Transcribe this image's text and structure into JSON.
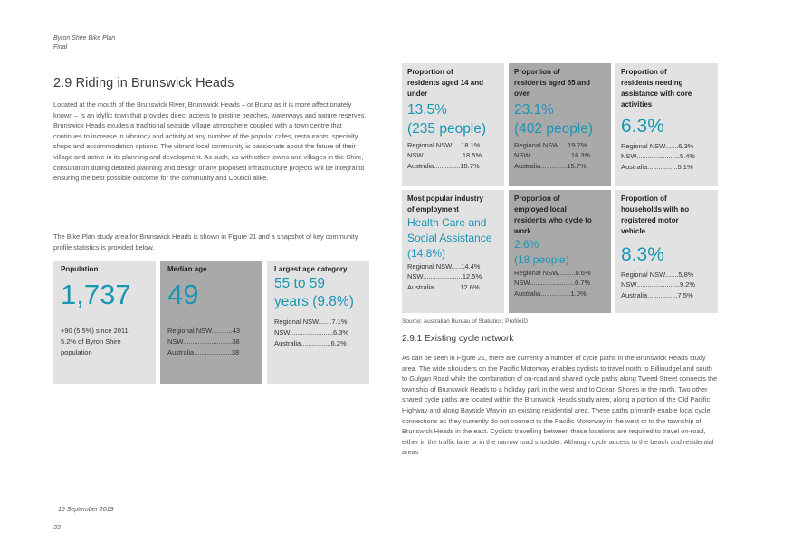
{
  "header": {
    "line1": "Byron Shire Bike Plan",
    "line2": "Final"
  },
  "heading": "2.9  Riding in Brunswick Heads",
  "intro_paragraph": "Located at the mouth of the Brunswick River, Brunswick Heads – or Brunz as it is more affectionately known – is an idyllic town that provides direct access to pristine beaches, waterways and nature reserves. Brunswick Heads exudes a traditional seaside village atmosphere coupled with a town centre that continues to increase in vibrancy and activity at any number of the popular cafes, restaurants, specialty shops and accommodation options. The vibrant local community is passionate about the future of their village and active in its planning and development. As such, as with other towns and villages in the Shire, consultation during detailed planning and design of any proposed infrastructure projects will be integral to ensuring the best possible outcome for the community and Council alike.",
  "study_paragraph": "The Bike Plan study area for Brunswick Heads is shown in Figure 21 and a snapshot of key community profile statistics is provided below.",
  "left_stats": [
    {
      "title": "Population",
      "big": "1,737",
      "lines": [
        "+90 (5.5%) since 2011",
        "5.2% of Byron Shire",
        "population"
      ]
    },
    {
      "title": "Median age",
      "big": "49",
      "lines": [
        "Regional NSW...........43",
        "NSW..........................38",
        "Australia....................38"
      ]
    },
    {
      "title": "Largest age category",
      "big_lines": [
        "55 to 59",
        "years (9.8%)"
      ],
      "lines": [
        "Regional NSW.......7.1%",
        "NSW.......................6.3%",
        "Australia................6.2%"
      ]
    }
  ],
  "right_stats": [
    {
      "title_lines": [
        "Proportion of",
        "residents aged 14 and",
        "under"
      ],
      "big_lines": [
        "13.5%",
        "(235 people)"
      ],
      "lines": [
        "Regional NSW.....18.1%",
        "NSW.....................18.5%",
        "Australia..............18.7%"
      ]
    },
    {
      "title_lines": [
        "Proportion of",
        "residents aged 65 and",
        "over"
      ],
      "big_lines": [
        "23.1%",
        "(402 people)"
      ],
      "lines": [
        "Regional NSW.....19.7%",
        "NSW......................16.3%",
        "Australia..............15.7%"
      ]
    },
    {
      "title_lines": [
        "Proportion of",
        "residents needing",
        "assistance with core",
        "activities"
      ],
      "big_lines": [
        "6.3%"
      ],
      "lines": [
        "Regional NSW.......6.3%",
        "NSW.......................5.4%",
        "Australia................5.1%"
      ]
    },
    {
      "title_lines": [
        "Most popular industry",
        "of employment"
      ],
      "big_lines": [
        "Health Care and",
        "Social Assistance",
        "(14.8%)"
      ],
      "lines": [
        "Regional NSW.....14.4%",
        "NSW.....................12.5%",
        "Australia..............12.6%"
      ]
    },
    {
      "title_lines": [
        "Proportion of",
        "employed local",
        "residents who cycle to",
        "work"
      ],
      "big_lines": [
        "2.6%",
        "(18 people)"
      ],
      "lines": [
        "Regional NSW.........0.6%",
        "NSW........................0.7%",
        "Australia................1.0%"
      ]
    },
    {
      "title_lines": [
        "Proportion of",
        "households with no",
        "registered motor",
        "vehicle"
      ],
      "big_lines": [
        "8.3%"
      ],
      "lines": [
        "Regional NSW.......5.8%",
        "NSW.......................9.2%",
        "Australia................7.5%"
      ]
    }
  ],
  "source": "Source: Australian Bureau of Statistics; ProfileID",
  "subheading": "2.9.1  Existing cycle network",
  "network_paragraph": "As can be seen in Figure 21, there are currently a number of cycle paths in the Brunswick Heads study area. The wide shoulders on the Pacific Motorway enables cyclists to travel north to Billinudgel and south to Gulgan Road while the combination of on-road and shared cycle paths along Tweed Street connects the township of Brunswick Heads to a holiday park in the west and to Ocean Shores in the north. Two other shared cycle paths are located within the Brunswick Heads study area; along a portion of the Old Pacific Highway and along Bayside Way in an existing residential area. These paths primarily enable local cycle connections as they currently do not connect to the Pacific Motorway in the west or to the township of Brunswick Heads in the east. Cyclists travelling between these locations are required to travel on-road, either in the traffic lane or in the narrow road shoulder. Although cycle access to the beach and residential areas",
  "footer": {
    "date": "16 September 2019",
    "page": "33"
  },
  "colors": {
    "accent": "#1a96b5",
    "box_light": "#e2e2e2",
    "box_dark": "#a9a9a9"
  }
}
